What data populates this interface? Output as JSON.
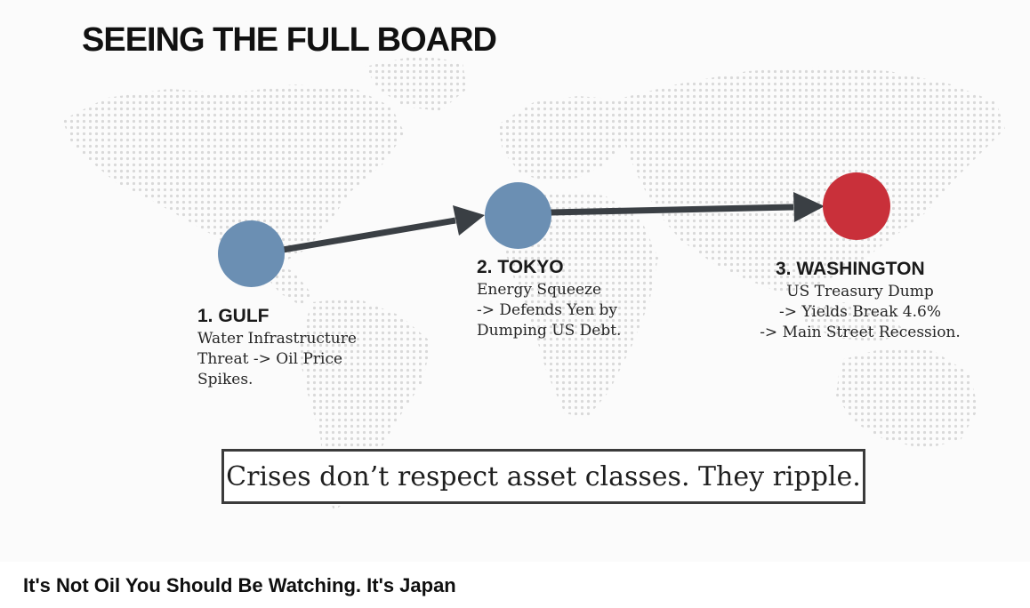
{
  "slide": {
    "title": "SEEING THE FULL BOARD",
    "stops": [
      {
        "heading": "1. GULF",
        "body": "Water Infrastructure\nThreat -> Oil Price\nSpikes.",
        "color": "#6b8fb3"
      },
      {
        "heading": "2. TOKYO",
        "body": "Energy Squeeze\n-> Defends Yen by\nDumping US Debt.",
        "color": "#6b8fb3"
      },
      {
        "heading": "3. WASHINGTON",
        "body": "US Treasury Dump\n-> Yields Break 4.6%\n-> Main Street Recession.",
        "color": "#c9303a"
      }
    ],
    "arrow_color": "#3a3f44",
    "quote": "Crises don’t respect asset classes. They ripple."
  },
  "video": {
    "title": "It's Not Oil You Should Be Watching. It's Japan"
  }
}
